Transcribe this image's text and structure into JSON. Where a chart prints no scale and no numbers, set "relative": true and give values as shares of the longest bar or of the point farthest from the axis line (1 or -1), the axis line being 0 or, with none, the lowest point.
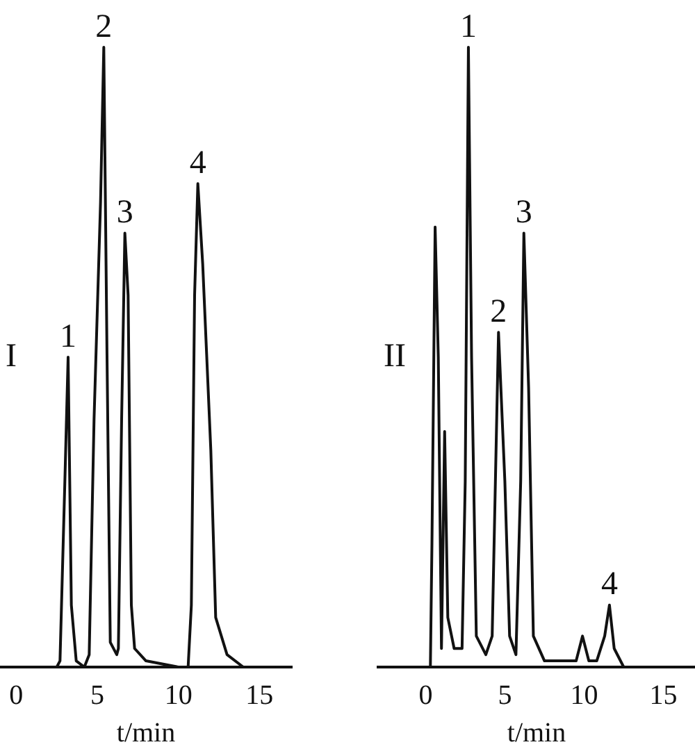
{
  "chart_data": [
    {
      "type": "line",
      "relative": true,
      "xlabel": "t/min",
      "xlim": [
        -1,
        17
      ],
      "xticks": [
        0,
        5,
        10,
        15
      ],
      "grid": false,
      "legend": false,
      "marker": "none",
      "tick_labels": "x",
      "annotations": [
        "I",
        {
          "text": "1",
          "x": 3.2,
          "y": 0.5
        },
        {
          "text": "2",
          "x": 5.4,
          "y": 1.0
        },
        {
          "text": "3",
          "x": 6.7,
          "y": 0.7
        },
        {
          "text": "4",
          "x": 11.2,
          "y": 0.78
        }
      ],
      "series": [
        {
          "color": "#111111",
          "x": [
            -0.2,
            2.5,
            2.7,
            3.0,
            3.2,
            3.4,
            3.7,
            4.2,
            4.5,
            4.8,
            5.2,
            5.4,
            5.6,
            5.8,
            6.2,
            6.3,
            6.5,
            6.7,
            6.9,
            7.1,
            7.3,
            8,
            10,
            10.6,
            10.8,
            11.0,
            11.2,
            11.5,
            12.0,
            12.3,
            13,
            14,
            16
          ],
          "values": [
            0.0,
            0.0,
            0.01,
            0.3,
            0.5,
            0.1,
            0.01,
            0.0,
            0.02,
            0.4,
            0.75,
            1.0,
            0.5,
            0.04,
            0.02,
            0.03,
            0.4,
            0.7,
            0.6,
            0.1,
            0.03,
            0.01,
            0.0,
            0.0,
            0.1,
            0.6,
            0.78,
            0.65,
            0.35,
            0.08,
            0.02,
            0.0,
            0.0
          ]
        }
      ]
    },
    {
      "type": "line",
      "relative": true,
      "xlabel": "t/min",
      "xlim": [
        -3,
        17
      ],
      "xticks": [
        0,
        5,
        10,
        15
      ],
      "grid": false,
      "legend": false,
      "marker": "none",
      "tick_labels": "x",
      "annotations": [
        "II",
        {
          "text": "1",
          "x": 2.7,
          "y": 1.0
        },
        {
          "text": "2",
          "x": 4.6,
          "y": 0.54
        },
        {
          "text": "3",
          "x": 6.2,
          "y": 0.7
        },
        {
          "text": "4",
          "x": 11.6,
          "y": 0.1
        }
      ],
      "series": [
        {
          "color": "#111111",
          "x": [
            -2,
            0.3,
            0.4,
            0.6,
            0.8,
            1.0,
            1.2,
            1.4,
            1.8,
            2.3,
            2.5,
            2.7,
            2.9,
            3.2,
            3.8,
            4.2,
            4.6,
            5.0,
            5.3,
            5.7,
            6.0,
            6.2,
            6.5,
            6.8,
            7.5,
            9.5,
            9.9,
            10.3,
            10.8,
            11.3,
            11.6,
            11.9,
            12.5,
            14,
            15.7
          ],
          "values": [
            0.0,
            0.0,
            0.2,
            0.71,
            0.5,
            0.03,
            0.38,
            0.08,
            0.03,
            0.03,
            0.3,
            1.0,
            0.5,
            0.05,
            0.02,
            0.05,
            0.54,
            0.3,
            0.05,
            0.02,
            0.3,
            0.7,
            0.45,
            0.05,
            0.01,
            0.01,
            0.05,
            0.01,
            0.01,
            0.05,
            0.1,
            0.03,
            0.0,
            0.0,
            0.0
          ]
        }
      ]
    }
  ]
}
